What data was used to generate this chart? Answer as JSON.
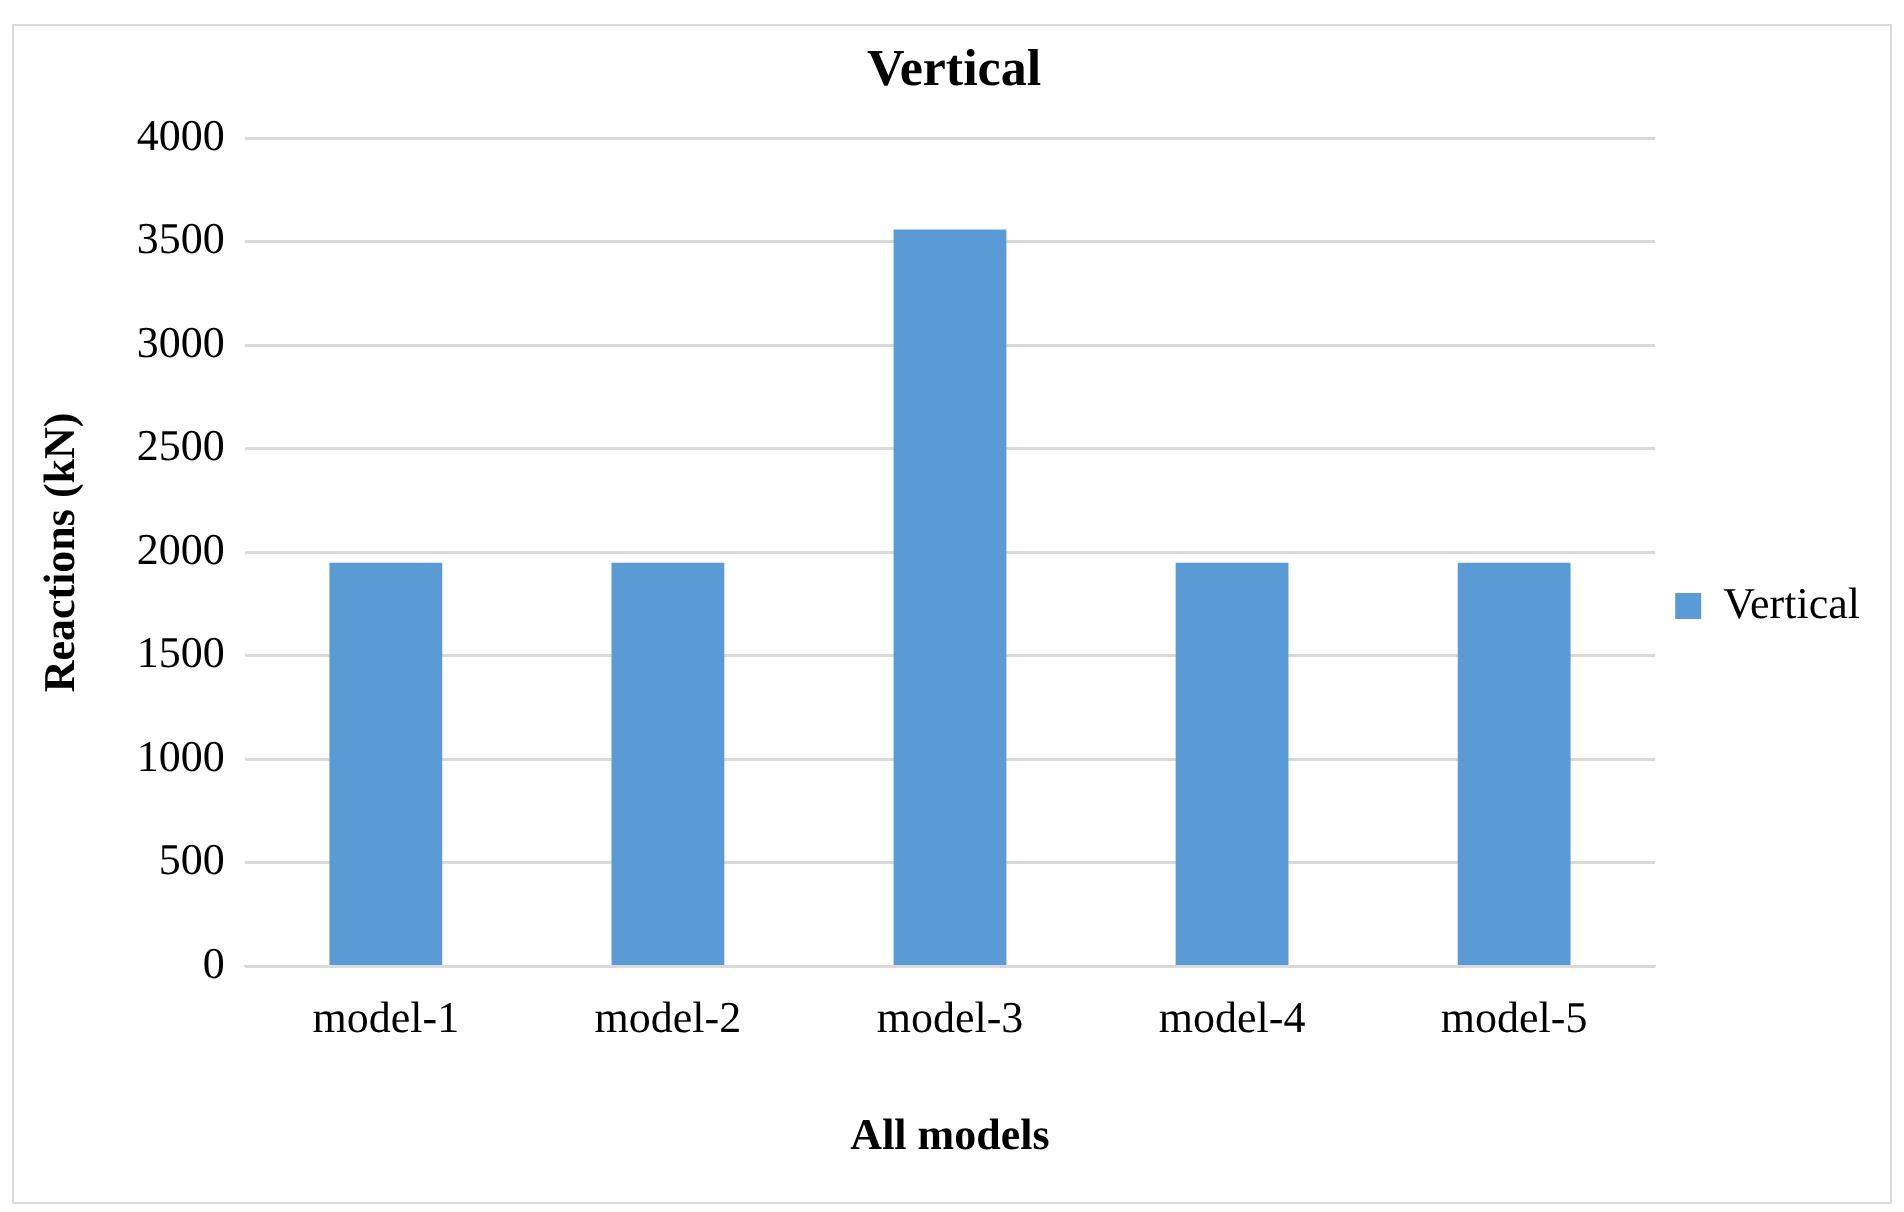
{
  "chart_data": {
    "type": "bar",
    "title": "Vertical",
    "xlabel": "All models",
    "ylabel": "Reactions (kN)",
    "categories": [
      "model-1",
      "model-2",
      "model-3",
      "model-4",
      "model-5"
    ],
    "series": [
      {
        "name": "Vertical",
        "color": "#5b9bd5",
        "values": [
          1950,
          1950,
          3560,
          1950,
          1950
        ]
      }
    ],
    "ylim": [
      0,
      4000
    ],
    "yticks": [
      0,
      500,
      1000,
      1500,
      2000,
      2500,
      3000,
      3500,
      4000
    ],
    "grid": "y",
    "legend": "right"
  }
}
